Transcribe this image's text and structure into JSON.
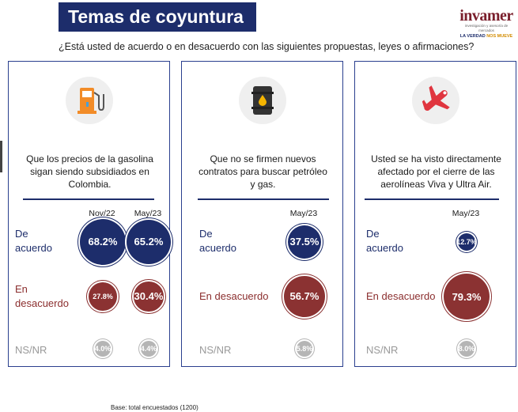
{
  "header": {
    "title": "Temas de coyuntura",
    "question": "¿Está usted de acuerdo o en desacuerdo con las siguientes propuestas, leyes o afirmaciones?"
  },
  "logo": {
    "name": "invamer",
    "subtitle": "investigación y asesoría de mercados",
    "tagline_a": "LA VERDAD ",
    "tagline_b": "NOS MUEVE"
  },
  "footer": {
    "base": "Base: total encuestados (1200)"
  },
  "colors": {
    "navy": "#1d2d6b",
    "red": "#8b3232",
    "gray": "#b5b5b5"
  },
  "chart_data": [
    {
      "type": "bubble",
      "icon": "gas-pump-icon",
      "question": "Que los precios de la gasolina sigan siendo subsidiados en Colombia.",
      "periods": [
        "Nov/22",
        "May/23"
      ],
      "series": [
        {
          "name": "De acuerdo",
          "values": [
            68.2,
            65.2
          ],
          "labels": [
            "68.2%",
            "65.2%"
          ]
        },
        {
          "name": "En desacuerdo",
          "values": [
            27.8,
            30.4
          ],
          "labels": [
            "27.8%",
            "30.4%"
          ]
        },
        {
          "name": "NS/NR",
          "values": [
            4.0,
            4.4
          ],
          "labels": [
            "4.0%",
            "4.4%"
          ]
        }
      ]
    },
    {
      "type": "bubble",
      "icon": "oil-barrel-icon",
      "question": "Que no se firmen nuevos contratos para buscar petróleo y gas.",
      "periods": [
        "May/23"
      ],
      "series": [
        {
          "name": "De acuerdo",
          "values": [
            37.5
          ],
          "labels": [
            "37.5%"
          ]
        },
        {
          "name": "En desacuerdo",
          "values": [
            56.7
          ],
          "labels": [
            "56.7%"
          ]
        },
        {
          "name": "NS/NR",
          "values": [
            5.8
          ],
          "labels": [
            "5.8%"
          ]
        }
      ]
    },
    {
      "type": "bubble",
      "icon": "airplane-icon",
      "question": "Usted se ha visto directamente afectado por el cierre de las aerolíneas  Viva y Ultra Air.",
      "periods": [
        "May/23"
      ],
      "series": [
        {
          "name": "De acuerdo",
          "values": [
            12.7
          ],
          "labels": [
            "12.7%"
          ]
        },
        {
          "name": "En desacuerdo",
          "values": [
            79.3
          ],
          "labels": [
            "79.3%"
          ]
        },
        {
          "name": "NS/NR",
          "values": [
            8.0
          ],
          "labels": [
            "8.0%"
          ]
        }
      ]
    }
  ],
  "panels": [
    {
      "label_agree_1": "De",
      "label_agree_2": "acuerdo",
      "label_disagree_1": "En",
      "label_disagree_2": "desacuerdo",
      "label_nsnr": "NS/NR"
    },
    {
      "label_agree_1": "De",
      "label_agree_2": "acuerdo",
      "label_disagree": "En desacuerdo",
      "label_nsnr": "NS/NR"
    },
    {
      "label_agree_1": "De",
      "label_agree_2": "acuerdo",
      "label_disagree": "En desacuerdo",
      "label_nsnr": "NS/NR"
    }
  ]
}
